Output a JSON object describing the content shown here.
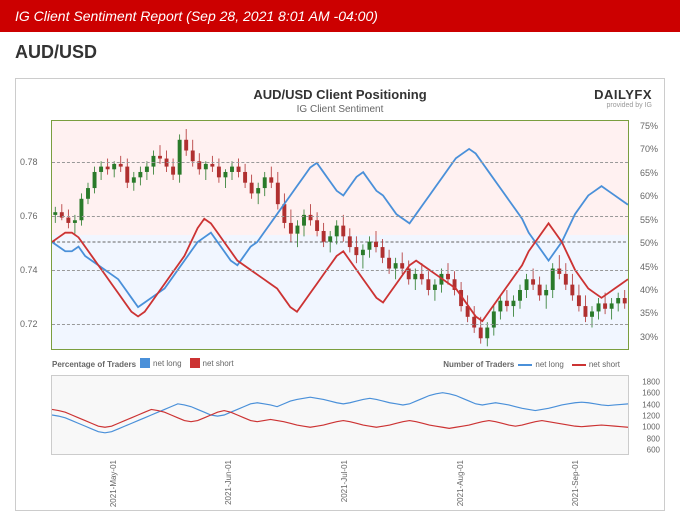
{
  "header": {
    "title": "IG Client Sentiment Report (Sep 28, 2021 8:01 AM -04:00)"
  },
  "subtitle": "AUD/USD",
  "chart": {
    "title": "AUD/USD Client Positioning",
    "subtitle": "IG Client Sentiment",
    "logo_main": "DAILYFX",
    "logo_sub": "provided by IG",
    "background_top": "rgba(255, 200, 200, 0.25)",
    "background_bottom": "rgba(200, 220, 255, 0.25)",
    "border_color": "#7a9e3f",
    "left_axis": {
      "ticks": [
        0.72,
        0.74,
        0.76,
        0.78
      ],
      "min": 0.71,
      "max": 0.795
    },
    "right_axis": {
      "ticks": [
        30,
        35,
        40,
        45,
        50,
        55,
        60,
        65,
        70,
        75
      ],
      "min": 27,
      "max": 76
    },
    "candles": {
      "up_color": "#2a7a2a",
      "down_color": "#b03030",
      "data": [
        {
          "o": 0.76,
          "h": 0.763,
          "l": 0.757,
          "c": 0.761
        },
        {
          "o": 0.761,
          "h": 0.764,
          "l": 0.758,
          "c": 0.759
        },
        {
          "o": 0.759,
          "h": 0.762,
          "l": 0.755,
          "c": 0.757
        },
        {
          "o": 0.757,
          "h": 0.76,
          "l": 0.753,
          "c": 0.758
        },
        {
          "o": 0.758,
          "h": 0.768,
          "l": 0.756,
          "c": 0.766
        },
        {
          "o": 0.766,
          "h": 0.772,
          "l": 0.764,
          "c": 0.77
        },
        {
          "o": 0.77,
          "h": 0.778,
          "l": 0.768,
          "c": 0.776
        },
        {
          "o": 0.776,
          "h": 0.78,
          "l": 0.773,
          "c": 0.778
        },
        {
          "o": 0.778,
          "h": 0.781,
          "l": 0.775,
          "c": 0.777
        },
        {
          "o": 0.777,
          "h": 0.78,
          "l": 0.774,
          "c": 0.779
        },
        {
          "o": 0.779,
          "h": 0.782,
          "l": 0.776,
          "c": 0.778
        },
        {
          "o": 0.778,
          "h": 0.781,
          "l": 0.77,
          "c": 0.772
        },
        {
          "o": 0.772,
          "h": 0.776,
          "l": 0.769,
          "c": 0.774
        },
        {
          "o": 0.774,
          "h": 0.778,
          "l": 0.771,
          "c": 0.776
        },
        {
          "o": 0.776,
          "h": 0.78,
          "l": 0.773,
          "c": 0.778
        },
        {
          "o": 0.778,
          "h": 0.784,
          "l": 0.775,
          "c": 0.782
        },
        {
          "o": 0.782,
          "h": 0.786,
          "l": 0.779,
          "c": 0.781
        },
        {
          "o": 0.781,
          "h": 0.784,
          "l": 0.776,
          "c": 0.778
        },
        {
          "o": 0.778,
          "h": 0.781,
          "l": 0.773,
          "c": 0.775
        },
        {
          "o": 0.775,
          "h": 0.79,
          "l": 0.772,
          "c": 0.788
        },
        {
          "o": 0.788,
          "h": 0.792,
          "l": 0.782,
          "c": 0.784
        },
        {
          "o": 0.784,
          "h": 0.788,
          "l": 0.778,
          "c": 0.78
        },
        {
          "o": 0.78,
          "h": 0.783,
          "l": 0.775,
          "c": 0.777
        },
        {
          "o": 0.777,
          "h": 0.78,
          "l": 0.773,
          "c": 0.779
        },
        {
          "o": 0.779,
          "h": 0.782,
          "l": 0.776,
          "c": 0.778
        },
        {
          "o": 0.778,
          "h": 0.781,
          "l": 0.772,
          "c": 0.774
        },
        {
          "o": 0.774,
          "h": 0.777,
          "l": 0.77,
          "c": 0.776
        },
        {
          "o": 0.776,
          "h": 0.78,
          "l": 0.773,
          "c": 0.778
        },
        {
          "o": 0.778,
          "h": 0.781,
          "l": 0.774,
          "c": 0.776
        },
        {
          "o": 0.776,
          "h": 0.779,
          "l": 0.77,
          "c": 0.772
        },
        {
          "o": 0.772,
          "h": 0.775,
          "l": 0.766,
          "c": 0.768
        },
        {
          "o": 0.768,
          "h": 0.772,
          "l": 0.764,
          "c": 0.77
        },
        {
          "o": 0.77,
          "h": 0.776,
          "l": 0.767,
          "c": 0.774
        },
        {
          "o": 0.774,
          "h": 0.778,
          "l": 0.77,
          "c": 0.772
        },
        {
          "o": 0.772,
          "h": 0.776,
          "l": 0.762,
          "c": 0.764
        },
        {
          "o": 0.764,
          "h": 0.768,
          "l": 0.755,
          "c": 0.757
        },
        {
          "o": 0.757,
          "h": 0.762,
          "l": 0.75,
          "c": 0.753
        },
        {
          "o": 0.753,
          "h": 0.758,
          "l": 0.748,
          "c": 0.756
        },
        {
          "o": 0.756,
          "h": 0.762,
          "l": 0.752,
          "c": 0.76
        },
        {
          "o": 0.76,
          "h": 0.764,
          "l": 0.756,
          "c": 0.758
        },
        {
          "o": 0.758,
          "h": 0.761,
          "l": 0.752,
          "c": 0.754
        },
        {
          "o": 0.754,
          "h": 0.757,
          "l": 0.748,
          "c": 0.75
        },
        {
          "o": 0.75,
          "h": 0.754,
          "l": 0.746,
          "c": 0.752
        },
        {
          "o": 0.752,
          "h": 0.758,
          "l": 0.749,
          "c": 0.756
        },
        {
          "o": 0.756,
          "h": 0.76,
          "l": 0.75,
          "c": 0.752
        },
        {
          "o": 0.752,
          "h": 0.755,
          "l": 0.746,
          "c": 0.748
        },
        {
          "o": 0.748,
          "h": 0.752,
          "l": 0.742,
          "c": 0.745
        },
        {
          "o": 0.745,
          "h": 0.749,
          "l": 0.74,
          "c": 0.747
        },
        {
          "o": 0.747,
          "h": 0.752,
          "l": 0.744,
          "c": 0.75
        },
        {
          "o": 0.75,
          "h": 0.754,
          "l": 0.746,
          "c": 0.748
        },
        {
          "o": 0.748,
          "h": 0.751,
          "l": 0.742,
          "c": 0.744
        },
        {
          "o": 0.744,
          "h": 0.747,
          "l": 0.738,
          "c": 0.74
        },
        {
          "o": 0.74,
          "h": 0.744,
          "l": 0.736,
          "c": 0.742
        },
        {
          "o": 0.742,
          "h": 0.746,
          "l": 0.738,
          "c": 0.74
        },
        {
          "o": 0.74,
          "h": 0.743,
          "l": 0.734,
          "c": 0.736
        },
        {
          "o": 0.736,
          "h": 0.74,
          "l": 0.732,
          "c": 0.738
        },
        {
          "o": 0.738,
          "h": 0.742,
          "l": 0.734,
          "c": 0.736
        },
        {
          "o": 0.736,
          "h": 0.739,
          "l": 0.73,
          "c": 0.732
        },
        {
          "o": 0.732,
          "h": 0.736,
          "l": 0.728,
          "c": 0.734
        },
        {
          "o": 0.734,
          "h": 0.74,
          "l": 0.731,
          "c": 0.738
        },
        {
          "o": 0.738,
          "h": 0.742,
          "l": 0.734,
          "c": 0.736
        },
        {
          "o": 0.736,
          "h": 0.739,
          "l": 0.73,
          "c": 0.732
        },
        {
          "o": 0.732,
          "h": 0.735,
          "l": 0.724,
          "c": 0.726
        },
        {
          "o": 0.726,
          "h": 0.73,
          "l": 0.72,
          "c": 0.722
        },
        {
          "o": 0.722,
          "h": 0.726,
          "l": 0.716,
          "c": 0.718
        },
        {
          "o": 0.718,
          "h": 0.722,
          "l": 0.712,
          "c": 0.714
        },
        {
          "o": 0.714,
          "h": 0.72,
          "l": 0.711,
          "c": 0.718
        },
        {
          "o": 0.718,
          "h": 0.726,
          "l": 0.715,
          "c": 0.724
        },
        {
          "o": 0.724,
          "h": 0.73,
          "l": 0.721,
          "c": 0.728
        },
        {
          "o": 0.728,
          "h": 0.732,
          "l": 0.724,
          "c": 0.726
        },
        {
          "o": 0.726,
          "h": 0.73,
          "l": 0.722,
          "c": 0.728
        },
        {
          "o": 0.728,
          "h": 0.734,
          "l": 0.725,
          "c": 0.732
        },
        {
          "o": 0.732,
          "h": 0.738,
          "l": 0.729,
          "c": 0.736
        },
        {
          "o": 0.736,
          "h": 0.74,
          "l": 0.732,
          "c": 0.734
        },
        {
          "o": 0.734,
          "h": 0.737,
          "l": 0.728,
          "c": 0.73
        },
        {
          "o": 0.73,
          "h": 0.734,
          "l": 0.725,
          "c": 0.732
        },
        {
          "o": 0.732,
          "h": 0.742,
          "l": 0.729,
          "c": 0.74
        },
        {
          "o": 0.74,
          "h": 0.745,
          "l": 0.736,
          "c": 0.738
        },
        {
          "o": 0.738,
          "h": 0.742,
          "l": 0.732,
          "c": 0.734
        },
        {
          "o": 0.734,
          "h": 0.738,
          "l": 0.728,
          "c": 0.73
        },
        {
          "o": 0.73,
          "h": 0.734,
          "l": 0.724,
          "c": 0.726
        },
        {
          "o": 0.726,
          "h": 0.73,
          "l": 0.72,
          "c": 0.722
        },
        {
          "o": 0.722,
          "h": 0.726,
          "l": 0.718,
          "c": 0.724
        },
        {
          "o": 0.724,
          "h": 0.729,
          "l": 0.721,
          "c": 0.727
        },
        {
          "o": 0.727,
          "h": 0.731,
          "l": 0.723,
          "c": 0.725
        },
        {
          "o": 0.725,
          "h": 0.729,
          "l": 0.721,
          "c": 0.727
        },
        {
          "o": 0.727,
          "h": 0.731,
          "l": 0.724,
          "c": 0.729
        },
        {
          "o": 0.729,
          "h": 0.732,
          "l": 0.725,
          "c": 0.727
        }
      ]
    },
    "sentiment_long": {
      "color": "#4a90d9",
      "data": [
        50,
        49,
        48,
        48,
        49,
        47,
        46,
        45,
        44,
        43,
        42,
        40,
        38,
        36,
        37,
        38,
        39,
        40,
        42,
        44,
        46,
        48,
        50,
        51,
        52,
        50,
        48,
        46,
        45,
        47,
        49,
        50,
        52,
        54,
        56,
        58,
        60,
        62,
        64,
        66,
        67,
        65,
        63,
        61,
        60,
        62,
        64,
        65,
        63,
        61,
        60,
        58,
        56,
        55,
        54,
        56,
        58,
        60,
        62,
        64,
        66,
        68,
        69,
        70,
        69,
        67,
        65,
        63,
        61,
        59,
        57,
        55,
        52,
        50,
        48,
        46,
        48,
        50,
        53,
        56,
        58,
        60,
        61,
        62,
        61,
        60,
        59,
        58
      ]
    },
    "sentiment_short": {
      "color": "#cc3333",
      "data": [
        50,
        51,
        52,
        52,
        51,
        49,
        47,
        45,
        43,
        41,
        39,
        37,
        35,
        34,
        35,
        37,
        39,
        41,
        43,
        45,
        47,
        50,
        53,
        55,
        54,
        52,
        50,
        48,
        46,
        45,
        44,
        43,
        42,
        41,
        40,
        38,
        36,
        35,
        37,
        39,
        41,
        43,
        45,
        47,
        48,
        46,
        44,
        42,
        40,
        38,
        37,
        39,
        41,
        43,
        45,
        46,
        45,
        44,
        43,
        42,
        41,
        40,
        38,
        36,
        34,
        33,
        35,
        37,
        39,
        41,
        43,
        45,
        48,
        50,
        52,
        54,
        52,
        50,
        47,
        44,
        42,
        40,
        39,
        38,
        39,
        40,
        41,
        42
      ]
    },
    "x_labels": [
      "2021-May-01",
      "2021-Jun-01",
      "2021-Jul-01",
      "2021-Aug-01",
      "2021-Sep-01"
    ]
  },
  "secondary": {
    "legend_left_title": "Percentage of Traders",
    "legend_right_title": "Number of Traders",
    "legend_items": [
      {
        "label": "net long",
        "color": "#4a90d9",
        "type": "box"
      },
      {
        "label": "net short",
        "color": "#cc3333",
        "type": "box"
      },
      {
        "label": "net long",
        "color": "#4a90d9",
        "type": "line"
      },
      {
        "label": "net short",
        "color": "#cc3333",
        "type": "line"
      }
    ],
    "right_axis": {
      "ticks": [
        600,
        800,
        1000,
        1200,
        1400,
        1600,
        1800
      ],
      "min": 500,
      "max": 1900
    },
    "long_count": {
      "color": "#4a90d9",
      "data": [
        1200,
        1180,
        1150,
        1100,
        1050,
        1000,
        950,
        900,
        880,
        900,
        950,
        1000,
        1050,
        1100,
        1150,
        1200,
        1250,
        1300,
        1350,
        1400,
        1380,
        1350,
        1300,
        1250,
        1200,
        1180,
        1200,
        1250,
        1300,
        1350,
        1400,
        1420,
        1400,
        1380,
        1350,
        1400,
        1450,
        1480,
        1500,
        1520,
        1500,
        1480,
        1450,
        1420,
        1400,
        1420,
        1450,
        1480,
        1500,
        1480,
        1450,
        1420,
        1400,
        1380,
        1400,
        1450,
        1500,
        1550,
        1580,
        1600,
        1580,
        1550,
        1500,
        1450,
        1400,
        1380,
        1400,
        1420,
        1400,
        1380,
        1350,
        1320,
        1300,
        1280,
        1300,
        1320,
        1350,
        1380,
        1400,
        1420,
        1430,
        1420,
        1400,
        1380,
        1370,
        1380,
        1390,
        1400
      ]
    },
    "short_count": {
      "color": "#cc3333",
      "data": [
        1300,
        1280,
        1250,
        1200,
        1150,
        1100,
        1050,
        1000,
        980,
        1000,
        1050,
        1100,
        1150,
        1200,
        1250,
        1300,
        1280,
        1250,
        1200,
        1150,
        1100,
        1080,
        1100,
        1150,
        1200,
        1250,
        1280,
        1250,
        1200,
        1150,
        1100,
        1080,
        1100,
        1120,
        1100,
        1080,
        1050,
        1020,
        1000,
        980,
        1000,
        1020,
        1050,
        1080,
        1100,
        1080,
        1050,
        1020,
        1000,
        980,
        1000,
        1020,
        1050,
        1080,
        1100,
        1080,
        1050,
        1020,
        1000,
        980,
        960,
        980,
        1000,
        1020,
        1050,
        1080,
        1100,
        1080,
        1050,
        1020,
        1000,
        1020,
        1050,
        1080,
        1100,
        1080,
        1060,
        1040,
        1020,
        1000,
        990,
        1000,
        1010,
        1020,
        1010,
        1000,
        990,
        980
      ]
    }
  }
}
